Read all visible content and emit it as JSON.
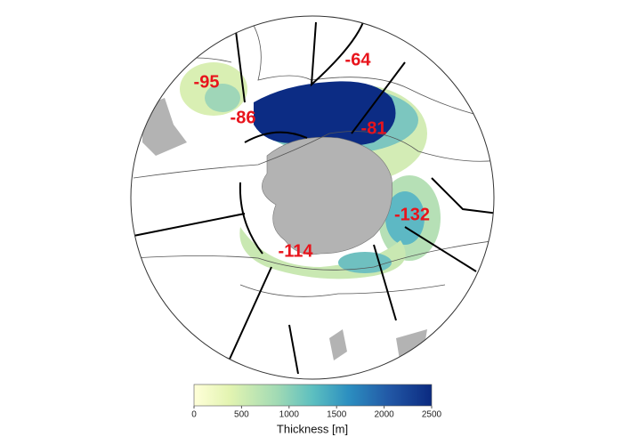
{
  "map": {
    "regions": [
      {
        "label": -95
      },
      {
        "label": -86
      },
      {
        "label": -64
      },
      {
        "label": -81
      },
      {
        "label": -132
      },
      {
        "label": -114
      }
    ]
  },
  "colorbar": {
    "label": "Thickness [m]",
    "lim": [
      0,
      2500
    ],
    "ticks": [
      0,
      500,
      1000,
      1500,
      2000,
      2500
    ]
  }
}
